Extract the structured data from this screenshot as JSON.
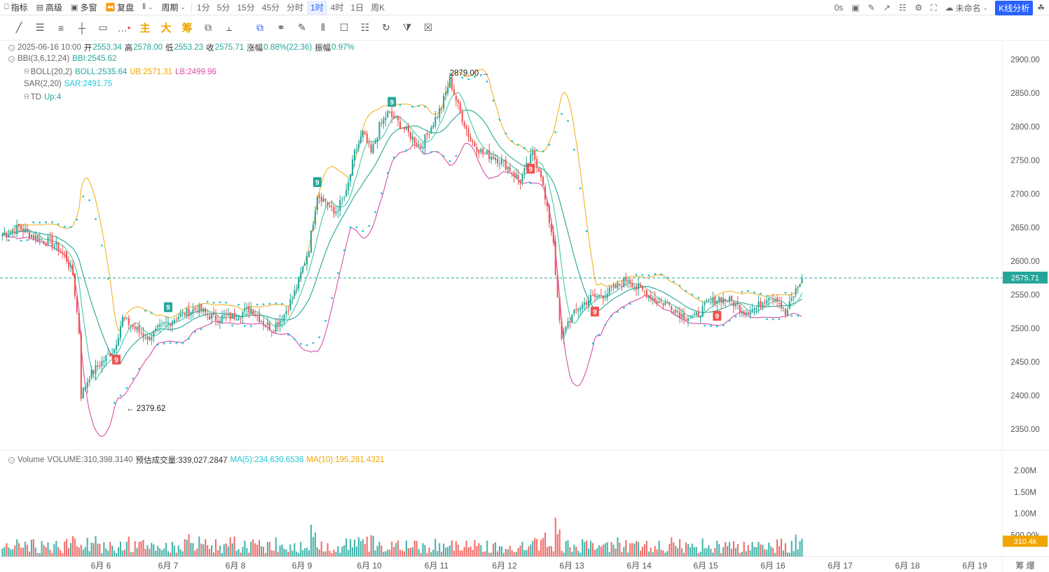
{
  "toolbar": {
    "indicators": "指标",
    "advanced": "高级",
    "multi_window": "多窗",
    "replay": "复盘",
    "period_label": "周期",
    "periods": [
      "1分",
      "5分",
      "15分",
      "45分",
      "分时",
      "1时",
      "4时",
      "1日",
      "周K"
    ],
    "active_period": "1时",
    "countdown": "0s",
    "layout_name": "未命名",
    "kline_analysis": "K线分析"
  },
  "drawing_tools": {
    "main_label": "主",
    "big_label": "大",
    "chips_label": "筹"
  },
  "legend": {
    "ohlc": {
      "date": "2025-06-16 10:00",
      "open_label": "开",
      "open": "2553.34",
      "high_label": "高",
      "high": "2578.00",
      "low_label": "低",
      "low": "2553.23",
      "close_label": "收",
      "close": "2575.71",
      "change_label": "涨幅",
      "change": "0.88%(22.36)",
      "amp_label": "振幅",
      "amp": "0.97%"
    },
    "bbi": {
      "name": "BBI(3,6,12,24)",
      "value": "BBI:2545.62"
    },
    "boll": {
      "name": "BOLL(20,2)",
      "mid": "BOLL:2535.64",
      "ub": "UB:2571.31",
      "lb": "LB:2499.96"
    },
    "sar": {
      "name": "SAR(2,20)",
      "value": "SAR:2491.75"
    },
    "td": {
      "name": "TD",
      "value": "Up:4"
    },
    "volume": {
      "name": "Volume",
      "value": "VOLUME:310,398.3140",
      "est": "预估成交量:339,027.2847",
      "ma5": "MA(5):234,630.6536",
      "ma10": "MA(10):195,281.4321"
    }
  },
  "price_axis": {
    "ticks": [
      "2900.00",
      "2850.00",
      "2800.00",
      "2750.00",
      "2700.00",
      "2650.00",
      "2600.00",
      "2550.00",
      "2500.00",
      "2450.00",
      "2400.00",
      "2350.00"
    ],
    "current_price": "2575.71"
  },
  "volume_axis": {
    "ticks": [
      "2.00M",
      "1.50M",
      "1.00M",
      "500.00k"
    ],
    "current": "310.4k"
  },
  "time_axis": {
    "labels": [
      "6月 6",
      "6月 7",
      "6月 8",
      "6月 9",
      "6月 10",
      "6月 11",
      "6月 12",
      "6月 13",
      "6月 14",
      "6月 15",
      "6月 16",
      "6月 17",
      "6月 18",
      "6月 19"
    ],
    "corner_a": "筹",
    "corner_b": "爆"
  },
  "annotations": {
    "high_marker": "2879.00",
    "low_marker": "2379.62",
    "td_marks": [
      {
        "label": "9",
        "kind": "up"
      },
      {
        "label": "9",
        "kind": "up"
      },
      {
        "label": "9",
        "kind": "up"
      },
      {
        "label": "9",
        "kind": "down"
      },
      {
        "label": "9",
        "kind": "down"
      },
      {
        "label": "9",
        "kind": "down"
      },
      {
        "label": "9",
        "kind": "down"
      }
    ]
  },
  "chart_data": {
    "type": "candlestick",
    "x_axis": "hourly, 6月 5 – 6月 16",
    "y_range": [
      2330,
      2920
    ],
    "close_path": [
      [
        0,
        2640
      ],
      [
        8,
        2650
      ],
      [
        16,
        2635
      ],
      [
        24,
        2628
      ],
      [
        30,
        2610
      ],
      [
        34,
        2580
      ],
      [
        37,
        2495
      ],
      [
        38,
        2400
      ],
      [
        42,
        2430
      ],
      [
        48,
        2450
      ],
      [
        54,
        2470
      ],
      [
        58,
        2515
      ],
      [
        64,
        2500
      ],
      [
        70,
        2485
      ],
      [
        78,
        2505
      ],
      [
        86,
        2520
      ],
      [
        94,
        2530
      ],
      [
        102,
        2515
      ],
      [
        112,
        2518
      ],
      [
        120,
        2530
      ],
      [
        124,
        2515
      ],
      [
        130,
        2500
      ],
      [
        136,
        2520
      ],
      [
        142,
        2560
      ],
      [
        148,
        2620
      ],
      [
        152,
        2700
      ],
      [
        156,
        2690
      ],
      [
        160,
        2670
      ],
      [
        166,
        2700
      ],
      [
        170,
        2760
      ],
      [
        174,
        2790
      ],
      [
        178,
        2760
      ],
      [
        182,
        2800
      ],
      [
        186,
        2820
      ],
      [
        190,
        2810
      ],
      [
        196,
        2790
      ],
      [
        202,
        2770
      ],
      [
        206,
        2795
      ],
      [
        212,
        2830
      ],
      [
        216,
        2870
      ],
      [
        220,
        2830
      ],
      [
        226,
        2780
      ],
      [
        232,
        2760
      ],
      [
        238,
        2755
      ],
      [
        244,
        2740
      ],
      [
        250,
        2720
      ],
      [
        256,
        2760
      ],
      [
        260,
        2730
      ],
      [
        262,
        2690
      ],
      [
        266,
        2630
      ],
      [
        268,
        2540
      ],
      [
        270,
        2480
      ],
      [
        272,
        2505
      ],
      [
        278,
        2530
      ],
      [
        284,
        2545
      ],
      [
        290,
        2550
      ],
      [
        296,
        2560
      ],
      [
        302,
        2575
      ],
      [
        306,
        2560
      ],
      [
        310,
        2555
      ],
      [
        316,
        2540
      ],
      [
        322,
        2535
      ],
      [
        328,
        2520
      ],
      [
        334,
        2515
      ],
      [
        340,
        2535
      ],
      [
        346,
        2545
      ],
      [
        352,
        2540
      ],
      [
        358,
        2525
      ],
      [
        364,
        2530
      ],
      [
        370,
        2550
      ],
      [
        374,
        2545
      ],
      [
        378,
        2520
      ],
      [
        382,
        2550
      ],
      [
        386,
        2575
      ]
    ],
    "bar_count": 387,
    "volume_max": 2100000
  }
}
